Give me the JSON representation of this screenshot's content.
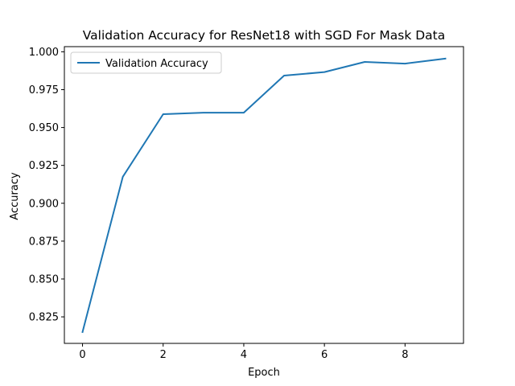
{
  "chart_data": {
    "type": "line",
    "title": "Validation Accuracy for ResNet18 with SGD For Mask Data",
    "xlabel": "Epoch",
    "ylabel": "Accuracy",
    "xlim": [
      -0.45,
      9.45
    ],
    "ylim": [
      0.8075,
      1.0034
    ],
    "xticks": [
      0,
      2,
      4,
      6,
      8
    ],
    "xtick_labels": [
      "0",
      "2",
      "4",
      "6",
      "8"
    ],
    "yticks": [
      0.825,
      0.85,
      0.875,
      0.9,
      0.925,
      0.95,
      0.975,
      1.0
    ],
    "ytick_labels": [
      "0.825",
      "0.850",
      "0.875",
      "0.900",
      "0.925",
      "0.950",
      "0.975",
      "1.000"
    ],
    "grid": false,
    "legend_position": "upper-left",
    "series": [
      {
        "name": "Validation Accuracy",
        "color": "#1f77b4",
        "x": [
          0,
          1,
          2,
          3,
          4,
          5,
          6,
          7,
          8,
          9
        ],
        "y": [
          0.815,
          0.9175,
          0.9588,
          0.9598,
          0.9598,
          0.9843,
          0.9866,
          0.9933,
          0.9922,
          0.9955
        ]
      }
    ]
  }
}
